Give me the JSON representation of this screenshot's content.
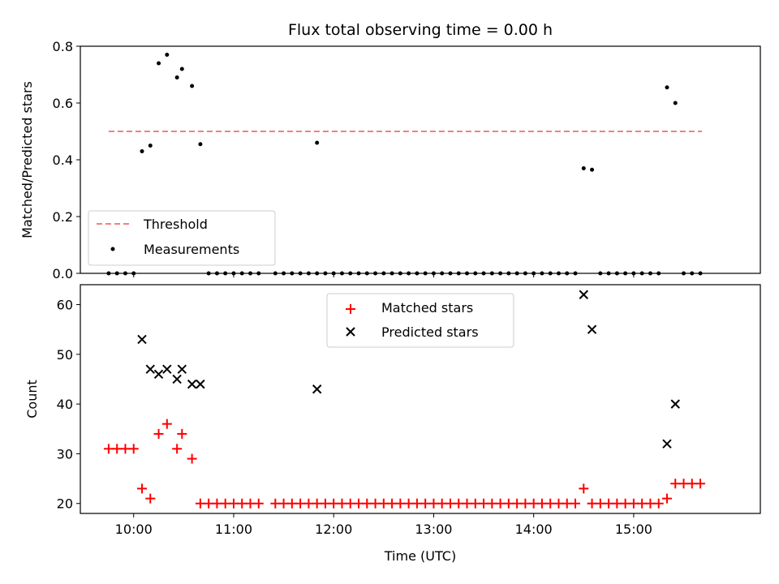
{
  "chart_data": [
    {
      "type": "scatter",
      "title": "Flux total observing time = 0.00 h",
      "xlabel": "",
      "ylabel": "Matched/Predicted stars",
      "ylim": [
        0,
        0.8
      ],
      "yticks": [
        "0.0",
        "0.2",
        "0.4",
        "0.6",
        "0.8"
      ],
      "xlim": [
        "09:28",
        "16:16"
      ],
      "legend_position": "lower-left",
      "threshold": {
        "name": "Threshold",
        "value": 0.5,
        "x_range": [
          "09:45",
          "15:41"
        ],
        "color": "#f08080"
      },
      "series": [
        {
          "name": "Measurements",
          "color": "#000000",
          "points": [
            [
              "09:45",
              0
            ],
            [
              "09:50",
              0
            ],
            [
              "09:55",
              0
            ],
            [
              "10:00",
              0
            ],
            [
              "10:05",
              0.43
            ],
            [
              "10:10",
              0.45
            ],
            [
              "10:15",
              0.74
            ],
            [
              "10:20",
              0.77
            ],
            [
              "10:26",
              0.69
            ],
            [
              "10:29",
              0.72
            ],
            [
              "10:35",
              0.66
            ],
            [
              "10:40",
              0.455
            ],
            [
              "10:45",
              0
            ],
            [
              "10:50",
              0
            ],
            [
              "10:55",
              0
            ],
            [
              "11:00",
              0
            ],
            [
              "11:05",
              0
            ],
            [
              "11:10",
              0
            ],
            [
              "11:15",
              0
            ],
            [
              "11:25",
              0
            ],
            [
              "11:30",
              0
            ],
            [
              "11:35",
              0
            ],
            [
              "11:40",
              0
            ],
            [
              "11:45",
              0
            ],
            [
              "11:50",
              0
            ],
            [
              "11:50",
              0.46
            ],
            [
              "11:55",
              0
            ],
            [
              "12:00",
              0
            ],
            [
              "12:05",
              0
            ],
            [
              "12:10",
              0
            ],
            [
              "12:15",
              0
            ],
            [
              "12:20",
              0
            ],
            [
              "12:25",
              0
            ],
            [
              "12:30",
              0
            ],
            [
              "12:35",
              0
            ],
            [
              "12:40",
              0
            ],
            [
              "12:45",
              0
            ],
            [
              "12:50",
              0
            ],
            [
              "12:55",
              0
            ],
            [
              "13:00",
              0
            ],
            [
              "13:05",
              0
            ],
            [
              "13:10",
              0
            ],
            [
              "13:15",
              0
            ],
            [
              "13:20",
              0
            ],
            [
              "13:25",
              0
            ],
            [
              "13:30",
              0
            ],
            [
              "13:35",
              0
            ],
            [
              "13:40",
              0
            ],
            [
              "13:45",
              0
            ],
            [
              "13:50",
              0
            ],
            [
              "13:55",
              0
            ],
            [
              "14:00",
              0
            ],
            [
              "14:05",
              0
            ],
            [
              "14:10",
              0
            ],
            [
              "14:15",
              0
            ],
            [
              "14:20",
              0
            ],
            [
              "14:25",
              0
            ],
            [
              "14:30",
              0.37
            ],
            [
              "14:35",
              0.365
            ],
            [
              "14:40",
              0
            ],
            [
              "14:45",
              0
            ],
            [
              "14:50",
              0
            ],
            [
              "14:55",
              0
            ],
            [
              "15:00",
              0
            ],
            [
              "15:05",
              0
            ],
            [
              "15:10",
              0
            ],
            [
              "15:15",
              0
            ],
            [
              "15:20",
              0.655
            ],
            [
              "15:25",
              0.6
            ],
            [
              "15:30",
              0
            ],
            [
              "15:35",
              0
            ],
            [
              "15:40",
              0
            ]
          ]
        }
      ]
    },
    {
      "type": "scatter",
      "title": "",
      "xlabel": "Time (UTC)",
      "ylabel": "Count",
      "ylim": [
        18,
        64
      ],
      "yticks": [
        "20",
        "30",
        "40",
        "50",
        "60"
      ],
      "xlim": [
        "09:28",
        "16:16"
      ],
      "xticks": [
        "10:00",
        "11:00",
        "12:00",
        "13:00",
        "14:00",
        "15:00"
      ],
      "legend_position": "upper-center",
      "series": [
        {
          "name": "Matched stars",
          "color": "#ff0000",
          "marker": "plus",
          "points": [
            [
              "09:45",
              31
            ],
            [
              "09:50",
              31
            ],
            [
              "09:55",
              31
            ],
            [
              "10:00",
              31
            ],
            [
              "10:05",
              23
            ],
            [
              "10:10",
              21
            ],
            [
              "10:15",
              34
            ],
            [
              "10:20",
              36
            ],
            [
              "10:26",
              31
            ],
            [
              "10:29",
              34
            ],
            [
              "10:35",
              29
            ],
            [
              "10:40",
              20
            ],
            [
              "10:45",
              20
            ],
            [
              "10:50",
              20
            ],
            [
              "10:55",
              20
            ],
            [
              "11:00",
              20
            ],
            [
              "11:05",
              20
            ],
            [
              "11:10",
              20
            ],
            [
              "11:15",
              20
            ],
            [
              "11:25",
              20
            ],
            [
              "11:30",
              20
            ],
            [
              "11:35",
              20
            ],
            [
              "11:40",
              20
            ],
            [
              "11:45",
              20
            ],
            [
              "11:50",
              20
            ],
            [
              "11:55",
              20
            ],
            [
              "12:00",
              20
            ],
            [
              "12:05",
              20
            ],
            [
              "12:10",
              20
            ],
            [
              "12:15",
              20
            ],
            [
              "12:20",
              20
            ],
            [
              "12:25",
              20
            ],
            [
              "12:30",
              20
            ],
            [
              "12:35",
              20
            ],
            [
              "12:40",
              20
            ],
            [
              "12:45",
              20
            ],
            [
              "12:50",
              20
            ],
            [
              "12:55",
              20
            ],
            [
              "13:00",
              20
            ],
            [
              "13:05",
              20
            ],
            [
              "13:10",
              20
            ],
            [
              "13:15",
              20
            ],
            [
              "13:20",
              20
            ],
            [
              "13:25",
              20
            ],
            [
              "13:30",
              20
            ],
            [
              "13:35",
              20
            ],
            [
              "13:40",
              20
            ],
            [
              "13:45",
              20
            ],
            [
              "13:50",
              20
            ],
            [
              "13:55",
              20
            ],
            [
              "14:00",
              20
            ],
            [
              "14:05",
              20
            ],
            [
              "14:10",
              20
            ],
            [
              "14:15",
              20
            ],
            [
              "14:20",
              20
            ],
            [
              "14:25",
              20
            ],
            [
              "14:30",
              23
            ],
            [
              "14:35",
              20
            ],
            [
              "14:40",
              20
            ],
            [
              "14:45",
              20
            ],
            [
              "14:50",
              20
            ],
            [
              "14:55",
              20
            ],
            [
              "15:00",
              20
            ],
            [
              "15:05",
              20
            ],
            [
              "15:10",
              20
            ],
            [
              "15:15",
              20
            ],
            [
              "15:20",
              21
            ],
            [
              "15:25",
              24
            ],
            [
              "15:30",
              24
            ],
            [
              "15:35",
              24
            ],
            [
              "15:40",
              24
            ]
          ]
        },
        {
          "name": "Predicted stars",
          "color": "#000000",
          "marker": "x",
          "points": [
            [
              "10:05",
              53
            ],
            [
              "10:10",
              47
            ],
            [
              "10:15",
              46
            ],
            [
              "10:20",
              47
            ],
            [
              "10:26",
              45
            ],
            [
              "10:29",
              47
            ],
            [
              "10:35",
              44
            ],
            [
              "10:40",
              44
            ],
            [
              "11:50",
              43
            ],
            [
              "14:30",
              62
            ],
            [
              "14:35",
              55
            ],
            [
              "15:20",
              32
            ],
            [
              "15:25",
              40
            ]
          ]
        }
      ]
    }
  ]
}
